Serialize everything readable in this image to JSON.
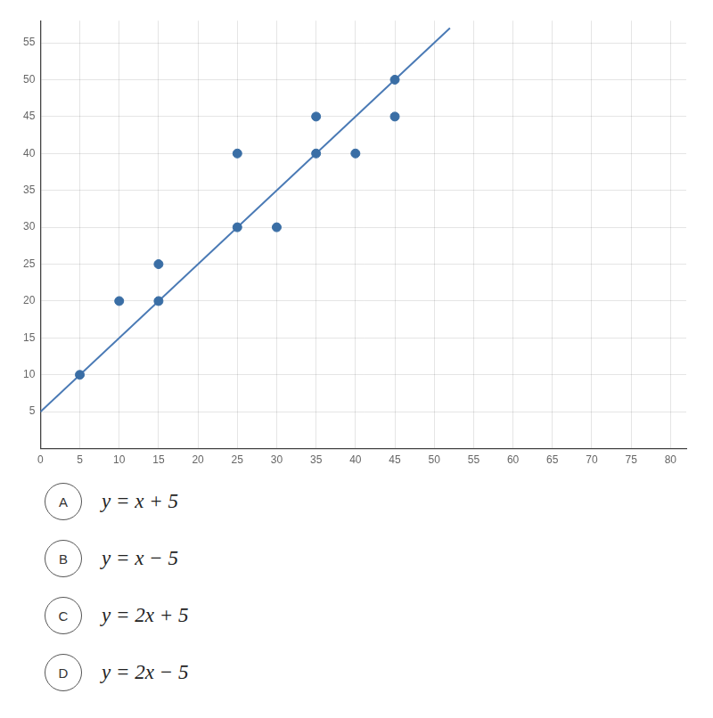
{
  "chart_data": {
    "type": "scatter",
    "series": [
      {
        "type": "scatter",
        "color": "#3a6ea5",
        "marker": "circle",
        "x": [
          5,
          10,
          15,
          15,
          25,
          25,
          30,
          35,
          35,
          40,
          45,
          45
        ],
        "values": [
          10,
          20,
          20,
          25,
          30,
          40,
          30,
          45,
          40,
          40,
          50,
          45
        ]
      },
      {
        "type": "line",
        "color": "#4a7ab5",
        "line_style": "solid",
        "x": [
          0,
          52
        ],
        "values": [
          5,
          57
        ]
      }
    ],
    "xlim": [
      0,
      82
    ],
    "ylim": [
      0,
      58
    ],
    "xticks": [
      0,
      5,
      10,
      15,
      20,
      25,
      30,
      35,
      40,
      45,
      50,
      55,
      60,
      65,
      70,
      75,
      80
    ],
    "yticks": [
      5,
      10,
      15,
      20,
      25,
      30,
      35,
      40,
      45,
      50,
      55
    ],
    "grid": true,
    "annotations": [
      {
        "label": "A",
        "text": "y = x + 5"
      },
      {
        "label": "B",
        "text": "y = x − 5"
      },
      {
        "label": "C",
        "text": "y = 2x + 5"
      },
      {
        "label": "D",
        "text": "y = 2x − 5"
      }
    ]
  }
}
